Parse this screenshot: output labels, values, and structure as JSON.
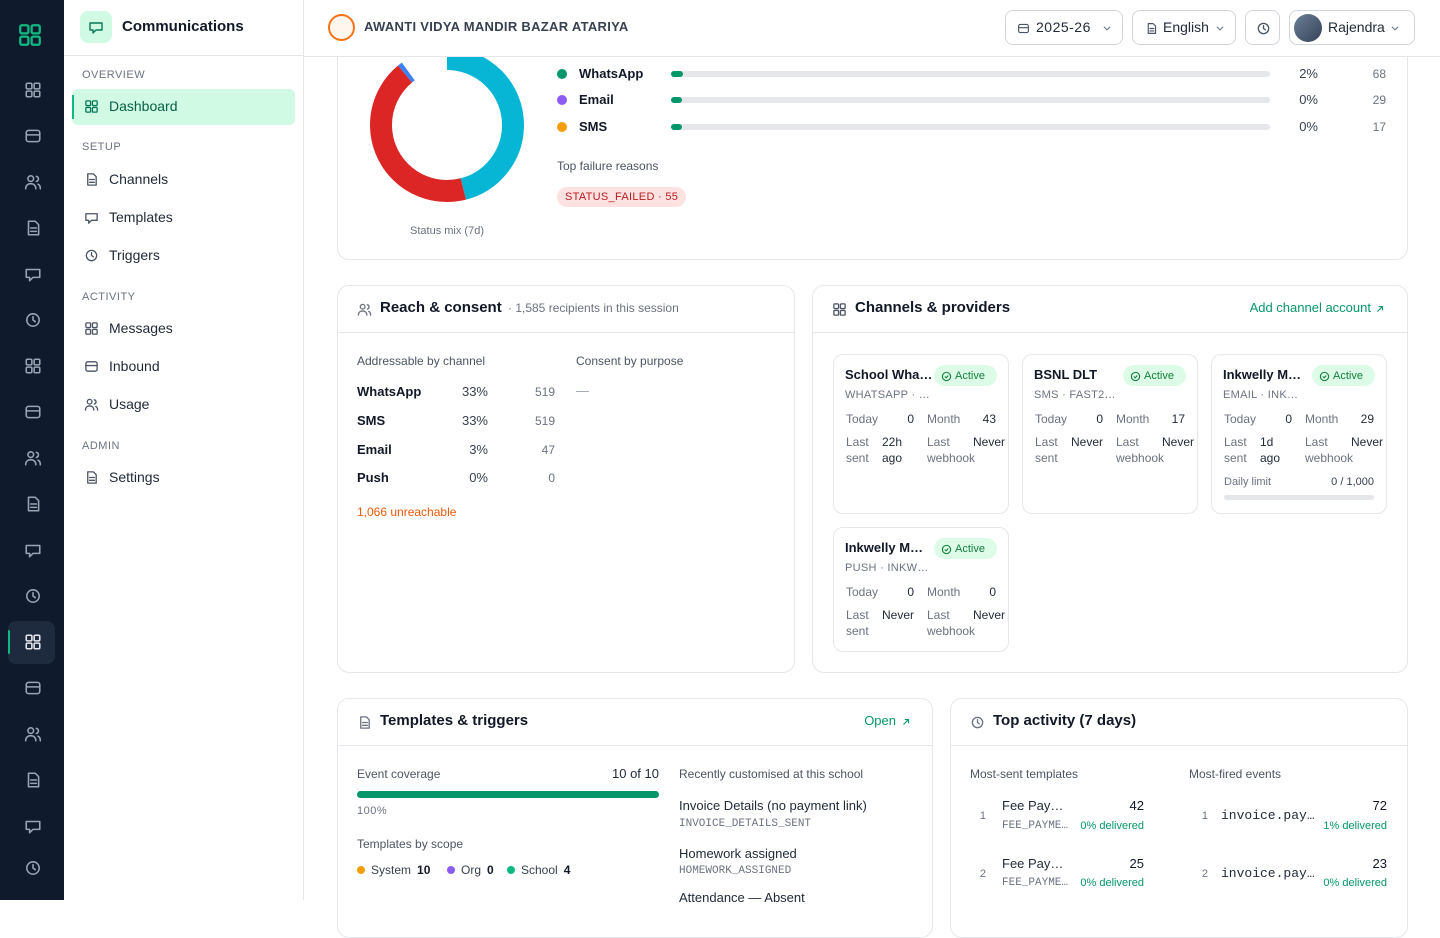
{
  "header": {
    "section": "Communications",
    "school": "AWANTI VIDYA MANDIR BAZAR ATARIYA",
    "session": "2025-26",
    "language": "English",
    "user": "Rajendra"
  },
  "sidebar": {
    "groups": [
      {
        "label": "OVERVIEW",
        "items": [
          "Dashboard"
        ]
      },
      {
        "label": "SETUP",
        "items": [
          "Channels",
          "Templates",
          "Triggers"
        ]
      },
      {
        "label": "ACTIVITY",
        "items": [
          "Messages",
          "Inbound",
          "Usage"
        ]
      },
      {
        "label": "ADMIN",
        "items": [
          "Settings"
        ]
      }
    ]
  },
  "delivery": {
    "status_mix": {
      "label": "Status mix (7d)",
      "segments": [
        {
          "color": "#06b6d4",
          "value": 46
        },
        {
          "color": "#dc2626",
          "value": 43
        },
        {
          "color": "#3b82f6",
          "value": 1
        }
      ]
    },
    "channels": [
      {
        "name": "WhatsApp",
        "color": "#059669",
        "rate": 2,
        "rate_label": "2%",
        "count": 68
      },
      {
        "name": "Email",
        "color": "#8b5cf6",
        "rate": 0,
        "rate_label": "0%",
        "count": 29
      },
      {
        "name": "SMS",
        "color": "#f59e0b",
        "rate": 0,
        "rate_label": "0%",
        "count": 17
      }
    ],
    "failure_title": "Top failure reasons",
    "failures": [
      "STATUS_FAILED · 55"
    ]
  },
  "reach": {
    "title": "Reach & consent",
    "subtitle": "· 1,585 recipients in this session",
    "addressable_title": "Addressable by channel",
    "rows": [
      {
        "name": "WhatsApp",
        "share": "33%",
        "count": 519
      },
      {
        "name": "SMS",
        "share": "33%",
        "count": 519
      },
      {
        "name": "Email",
        "share": "3%",
        "count": 47
      },
      {
        "name": "Push",
        "share": "0%",
        "count": 0
      }
    ],
    "consent_title": "Consent by purpose",
    "consent_empty": "—",
    "unreachable": "1,066 unreachable"
  },
  "providers": {
    "title": "Channels & providers",
    "action": "Add channel account",
    "labels": {
      "today": "Today",
      "month": "Month",
      "last_sent": "Last sent",
      "last_webhook": "Last webhook",
      "daily_limit": "Daily limit"
    },
    "cards": [
      {
        "name": "School Wha…",
        "status": "Active",
        "subtitle": "WHATSAPP · …",
        "today": 0,
        "month": 43,
        "last_sent": "22h ago",
        "last_webhook": "Never"
      },
      {
        "name": "BSNL DLT",
        "status": "Active",
        "subtitle": "SMS · FAST2…",
        "today": 0,
        "month": 17,
        "last_sent": "Never",
        "last_webhook": "Never"
      },
      {
        "name": "Inkwelly M…",
        "status": "Active",
        "subtitle": "EMAIL · INK…",
        "today": 0,
        "month": 29,
        "last_sent": "1d ago",
        "last_webhook": "Never",
        "daily_limit": "0 / 1,000"
      },
      {
        "name": "Inkwelly M…",
        "status": "Active",
        "subtitle": "PUSH · INKW…",
        "today": 0,
        "month": 0,
        "last_sent": "Never",
        "last_webhook": "Never"
      }
    ]
  },
  "templates": {
    "title": "Templates & triggers",
    "action": "Open",
    "coverage_title": "Event coverage",
    "coverage_count": "10 of 10",
    "coverage_pct": 100,
    "coverage_label": "100%",
    "scope_title": "Templates by scope",
    "scopes": [
      {
        "name": "System",
        "count": 10,
        "color": "#f59e0b"
      },
      {
        "name": "Org",
        "count": 0,
        "color": "#8b5cf6"
      },
      {
        "name": "School",
        "count": 4,
        "color": "#10b981"
      }
    ],
    "recent_title": "Recently customised at this school",
    "recent": [
      {
        "title": "Invoice Details (no payment link)",
        "code": "INVOICE_DETAILS_SENT"
      },
      {
        "title": "Homework assigned",
        "code": "HOMEWORK_ASSIGNED"
      },
      {
        "title": "Attendance — Absent"
      }
    ]
  },
  "activity": {
    "title": "Top activity (7 days)",
    "templates_title": "Most-sent templates",
    "templates": [
      {
        "rank": 1,
        "name": "Fee Pay…",
        "code": "FEE_PAYME…",
        "count": 42,
        "delivered": "0% delivered"
      },
      {
        "rank": 2,
        "name": "Fee Pay…",
        "code": "FEE_PAYME…",
        "count": 25,
        "delivered": "0% delivered"
      }
    ],
    "events_title": "Most-fired events",
    "events": [
      {
        "rank": 1,
        "name": "invoice.pay…",
        "count": 72,
        "delivered": "1% delivered"
      },
      {
        "rank": 2,
        "name": "invoice.pay…",
        "count": 23,
        "delivered": "0% delivered"
      }
    ]
  }
}
